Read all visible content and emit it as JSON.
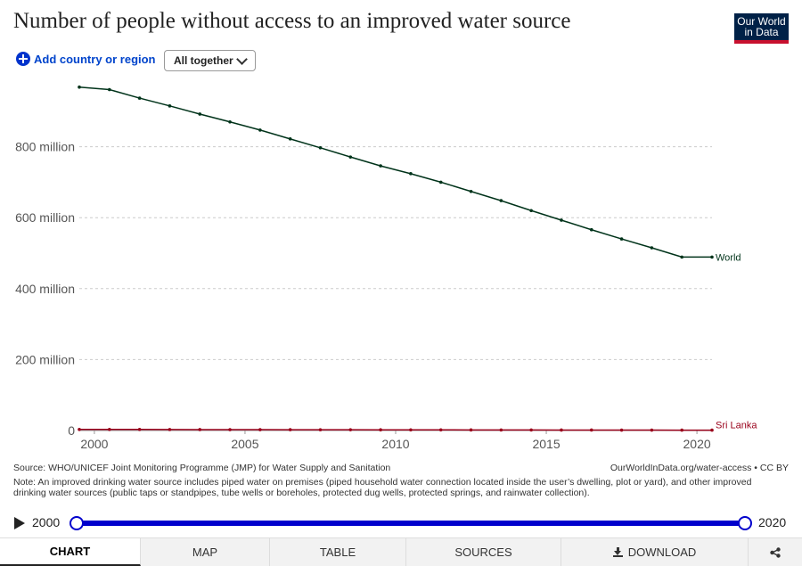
{
  "header": {
    "title": "Number of people without access to an improved water source",
    "logo_line1": "Our World",
    "logo_line2": "in Data"
  },
  "controls": {
    "add_label": "Add country or region",
    "select_value": "All together"
  },
  "colors": {
    "world": "#00331a",
    "sri_lanka": "#99001a",
    "grid": "#cccccc",
    "accent": "#0000cc"
  },
  "chart_data": {
    "type": "line",
    "title": "Number of people without access to an improved water source",
    "x_ticks": [
      2000,
      2005,
      2010,
      2015,
      2020
    ],
    "y_ticks": [
      0,
      200,
      400,
      600,
      800
    ],
    "y_tick_labels": [
      "0",
      "200 million",
      "400 million",
      "600 million",
      "800 million"
    ],
    "xlim": [
      1999.5,
      2020.5
    ],
    "ylim": [
      0,
      1000
    ],
    "y_unit": "million",
    "grid": "horizontal",
    "series": [
      {
        "name": "World",
        "color": "#00331a",
        "x": [
          1999.5,
          2000.5,
          2001.5,
          2002.5,
          2003.5,
          2004.5,
          2005.5,
          2006.5,
          2007.5,
          2008.5,
          2009.5,
          2010.5,
          2011.5,
          2012.5,
          2013.5,
          2014.5,
          2015.5,
          2016.5,
          2017.5,
          2018.5,
          2019.5,
          2020.5
        ],
        "values": [
          968,
          961,
          937,
          915,
          892,
          870,
          847,
          822,
          797,
          771,
          746,
          724,
          700,
          674,
          648,
          620,
          593,
          566,
          540,
          515,
          489,
          489
        ]
      },
      {
        "name": "Sri Lanka",
        "color": "#99001a",
        "x": [
          1999.5,
          2000.5,
          2001.5,
          2002.5,
          2003.5,
          2004.5,
          2005.5,
          2006.5,
          2007.5,
          2008.5,
          2009.5,
          2010.5,
          2011.5,
          2012.5,
          2013.5,
          2014.5,
          2015.5,
          2016.5,
          2017.5,
          2018.5,
          2019.5,
          2020.5
        ],
        "values": [
          3,
          3,
          3,
          2.8,
          2.6,
          2.5,
          2.4,
          2.3,
          2.2,
          2.1,
          2.0,
          1.9,
          1.8,
          1.7,
          1.6,
          1.5,
          1.4,
          1.3,
          1.2,
          1.1,
          1.0,
          1.0
        ]
      }
    ]
  },
  "footer": {
    "source": "Source: WHO/UNICEF Joint Monitoring Programme (JMP) for Water Supply and Sanitation",
    "url": "OurWorldInData.org/water-access • CC BY",
    "note": "Note: An improved drinking water source includes piped water on premises (piped household water connection located inside the user’s dwelling, plot or yard), and other improved drinking water sources (public taps or standpipes, tube wells or boreholes, protected dug wells, protected springs, and rainwater collection)."
  },
  "timeline": {
    "start": "2000",
    "end": "2020"
  },
  "tabs": [
    {
      "label": "CHART",
      "active": true
    },
    {
      "label": "MAP",
      "active": false
    },
    {
      "label": "TABLE",
      "active": false
    },
    {
      "label": "SOURCES",
      "active": false
    },
    {
      "label": "DOWNLOAD",
      "active": false
    }
  ]
}
